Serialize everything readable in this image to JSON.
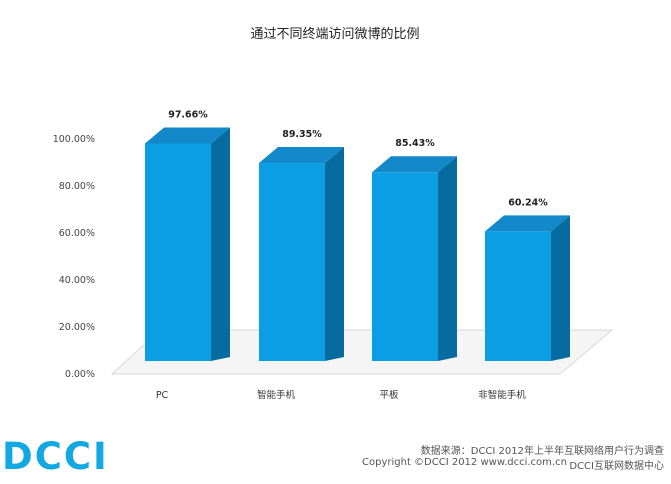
{
  "chart_data": {
    "type": "bar",
    "title": "通过不同终端访问微博的比例",
    "categories": [
      "PC",
      "智能手机",
      "平板",
      "非智能手机"
    ],
    "values": [
      97.66,
      89.35,
      85.43,
      60.24
    ],
    "value_labels": [
      "97.66%",
      "89.35%",
      "85.43%",
      "60.24%"
    ],
    "ylim": [
      0,
      100
    ],
    "yticks": [
      "0.00%",
      "20.00%",
      "40.00%",
      "60.00%",
      "80.00%",
      "100.00%"
    ],
    "xlabel": "",
    "ylabel": "",
    "grid": false,
    "style": "3d-bar",
    "colors": {
      "bar_front": "#0c9ee5",
      "bar_side": "#066b9f",
      "bar_top": "#1489c9",
      "floor": "#f5f5f5",
      "floor_edge": "#d8d8d8"
    }
  },
  "footer": {
    "logo": "DCCI",
    "logo_color": "#12a9e3",
    "source": "数据来源：DCCI 2012年上半年互联网络用户行为调查",
    "copyright": "Copyright ©DCCI 2012  www.dcci.com.cn",
    "center": "DCCI互联网数据中心"
  }
}
